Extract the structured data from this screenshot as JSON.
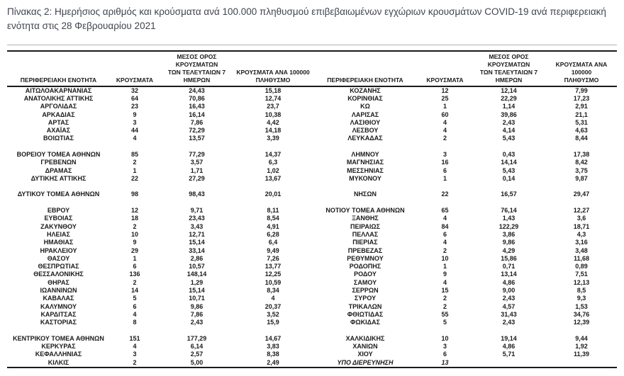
{
  "title": "Πίνακας 2: Ημερήσιος αριθμός και κρούσματα ανά 100.000 πληθυσμού επιβεβαιωμένων εγχώριων κρουσμάτων COVID-19 ανά περιφερειακή ενότητα στις 28 Φεβρουαρίου 2021",
  "colors": {
    "title_text": "#3f4450",
    "table_text": "#1a1a1a",
    "rule_thick": "#1a1a1a",
    "rule_thin": "#b3b3b3",
    "background": "#ffffff"
  },
  "table": {
    "headers": {
      "region": "ΠΕΡΙΦΕΡΕΙΑΚΗ ΕΝΟΤΗΤΑ",
      "cases": "ΚΡΟΥΣΜΑΤΑ",
      "avg7": "ΜΕΣΟΣ ΟΡΟΣ ΚΡΟΥΣΜΑΤΩΝ\nΤΩΝ ΤΕΛΕΥΤΑΙΩΝ 7\nΗΜΕΡΩΝ",
      "per100k": "ΚΡΟΥΣΜΑΤΑ ΑΝΑ 100000\nΠΛΗΘΥΣΜΟ"
    },
    "left_rows": [
      {
        "cells": [
          "ΑΙΤΩΛΟΑΚΑΡΝΑΝΙΑΣ",
          "32",
          "24,43",
          "15,18"
        ]
      },
      {
        "cells": [
          "ΑΝΑΤΟΛΙΚΗΣ ΑΤΤΙΚΗΣ",
          "64",
          "70,86",
          "12,74"
        ]
      },
      {
        "cells": [
          "ΑΡΓΟΛΙΔΑΣ",
          "23",
          "16,43",
          "23,7"
        ]
      },
      {
        "cells": [
          "ΑΡΚΑΔΙΑΣ",
          "9",
          "16,14",
          "10,38"
        ]
      },
      {
        "cells": [
          "ΑΡΤΑΣ",
          "3",
          "7,86",
          "4,42"
        ]
      },
      {
        "cells": [
          "ΑΧΑΪΑΣ",
          "44",
          "72,29",
          "14,18"
        ]
      },
      {
        "cells": [
          "ΒΟΙΩΤΙΑΣ",
          "4",
          "13,57",
          "3,39"
        ]
      },
      null,
      {
        "cells": [
          "ΒΟΡΕΙΟΥ ΤΟΜΕΑ ΑΘΗΝΩΝ",
          "85",
          "77,29",
          "14,37"
        ]
      },
      {
        "cells": [
          "ΓΡΕΒΕΝΩΝ",
          "2",
          "3,57",
          "6,3"
        ]
      },
      {
        "cells": [
          "ΔΡΑΜΑΣ",
          "1",
          "1,71",
          "1,02"
        ]
      },
      {
        "cells": [
          "ΔΥΤΙΚΗΣ ΑΤΤΙΚΗΣ",
          "22",
          "27,29",
          "13,67"
        ]
      },
      null,
      {
        "cells": [
          "ΔΥΤΙΚΟΥ ΤΟΜΕΑ ΑΘΗΝΩΝ",
          "98",
          "98,43",
          "20,01"
        ]
      },
      null,
      {
        "cells": [
          "ΕΒΡΟΥ",
          "12",
          "9,71",
          "8,11"
        ]
      },
      {
        "cells": [
          "ΕΥΒΟΙΑΣ",
          "18",
          "23,43",
          "8,54"
        ]
      },
      {
        "cells": [
          "ΖΑΚΥΝΘΟΥ",
          "2",
          "3,43",
          "4,91"
        ]
      },
      {
        "cells": [
          "ΗΛΕΙΑΣ",
          "10",
          "12,71",
          "6,28"
        ]
      },
      {
        "cells": [
          "ΗΜΑΘΙΑΣ",
          "9",
          "15,14",
          "6,4"
        ]
      },
      {
        "cells": [
          "ΗΡΑΚΛΕΙΟΥ",
          "29",
          "33,14",
          "9,49"
        ]
      },
      {
        "cells": [
          "ΘΑΣΟΥ",
          "1",
          "2,86",
          "7,26"
        ]
      },
      {
        "cells": [
          "ΘΕΣΠΡΩΤΙΑΣ",
          "6",
          "10,57",
          "13,77"
        ]
      },
      {
        "cells": [
          "ΘΕΣΣΑΛΟΝΙΚΗΣ",
          "136",
          "148,14",
          "12,25"
        ]
      },
      {
        "cells": [
          "ΘΗΡΑΣ",
          "2",
          "1,29",
          "10,59"
        ]
      },
      {
        "cells": [
          "ΙΩΑΝΝΙΝΩΝ",
          "14",
          "15,14",
          "8,34"
        ]
      },
      {
        "cells": [
          "ΚΑΒΑΛΑΣ",
          "5",
          "10,71",
          "4"
        ]
      },
      {
        "cells": [
          "ΚΑΛΥΜΝΟΥ",
          "6",
          "9,86",
          "20,37"
        ]
      },
      {
        "cells": [
          "ΚΑΡΔΙΤΣΑΣ",
          "4",
          "7,86",
          "3,52"
        ]
      },
      {
        "cells": [
          "ΚΑΣΤΟΡΙΑΣ",
          "8",
          "2,43",
          "15,9"
        ]
      },
      null,
      {
        "cells": [
          "ΚΕΝΤΡΙΚΟΥ ΤΟΜΕΑ ΑΘΗΝΩΝ",
          "151",
          "177,29",
          "14,67"
        ]
      },
      {
        "cells": [
          "ΚΕΡΚΥΡΑΣ",
          "4",
          "6,14",
          "3,83"
        ]
      },
      {
        "cells": [
          "ΚΕΦΑΛΛΗΝΙΑΣ",
          "3",
          "2,57",
          "8,38"
        ]
      },
      {
        "cells": [
          "ΚΙΛΚΙΣ",
          "2",
          "5,00",
          "2,49"
        ]
      }
    ],
    "right_rows": [
      {
        "cells": [
          "ΚΟΖΑΝΗΣ",
          "12",
          "12,14",
          "7,99"
        ]
      },
      {
        "cells": [
          "ΚΟΡΙΝΘΙΑΣ",
          "25",
          "22,29",
          "17,23"
        ]
      },
      {
        "cells": [
          "ΚΩ",
          "1",
          "1,14",
          "2,91"
        ]
      },
      {
        "cells": [
          "ΛΑΡΙΣΑΣ",
          "60",
          "39,86",
          "21,1"
        ]
      },
      {
        "cells": [
          "ΛΑΣΙΘΙΟΥ",
          "4",
          "2,43",
          "5,31"
        ]
      },
      {
        "cells": [
          "ΛΕΣΒΟΥ",
          "4",
          "4,14",
          "4,63"
        ]
      },
      {
        "cells": [
          "ΛΕΥΚΑΔΑΣ",
          "2",
          "5,43",
          "8,44"
        ]
      },
      null,
      {
        "cells": [
          "ΛΗΜΝΟΥ",
          "3",
          "0,43",
          "17,38"
        ]
      },
      {
        "cells": [
          "ΜΑΓΝΗΣΙΑΣ",
          "16",
          "14,14",
          "8,42"
        ]
      },
      {
        "cells": [
          "ΜΕΣΣΗΝΙΑΣ",
          "6",
          "5,43",
          "3,75"
        ]
      },
      {
        "cells": [
          "ΜΥΚΟΝΟΥ",
          "1",
          "0,14",
          "9,87"
        ]
      },
      null,
      {
        "cells": [
          "ΝΗΣΩΝ",
          "22",
          "16,57",
          "29,47"
        ]
      },
      null,
      {
        "cells": [
          "ΝΟΤΙΟΥ ΤΟΜΕΑ ΑΘΗΝΩΝ",
          "65",
          "76,14",
          "12,27"
        ]
      },
      {
        "cells": [
          "ΞΑΝΘΗΣ",
          "4",
          "1,43",
          "3,6"
        ]
      },
      {
        "cells": [
          "ΠΕΙΡΑΙΩΣ",
          "84",
          "122,29",
          "18,71"
        ]
      },
      {
        "cells": [
          "ΠΕΛΛΑΣ",
          "6",
          "3,86",
          "4,3"
        ]
      },
      {
        "cells": [
          "ΠΙΕΡΙΑΣ",
          "4",
          "9,86",
          "3,16"
        ]
      },
      {
        "cells": [
          "ΠΡΕΒΕΖΑΣ",
          "2",
          "4,29",
          "3,48"
        ]
      },
      {
        "cells": [
          "ΡΕΘΥΜΝΟΥ",
          "10",
          "15,86",
          "11,68"
        ]
      },
      {
        "cells": [
          "ΡΟΔΟΠΗΣ",
          "1",
          "0,71",
          "0,89"
        ]
      },
      {
        "cells": [
          "ΡΟΔΟΥ",
          "9",
          "13,14",
          "7,51"
        ]
      },
      {
        "cells": [
          "ΣΑΜΟΥ",
          "4",
          "4,86",
          "12,13"
        ]
      },
      {
        "cells": [
          "ΣΕΡΡΩΝ",
          "15",
          "9,00",
          "8,5"
        ]
      },
      {
        "cells": [
          "ΣΥΡΟΥ",
          "2",
          "2,43",
          "9,3"
        ]
      },
      {
        "cells": [
          "ΤΡΙΚΑΛΩΝ",
          "2",
          "4,57",
          "1,53"
        ]
      },
      {
        "cells": [
          "ΦΘΙΩΤΙΔΑΣ",
          "55",
          "31,43",
          "34,76"
        ]
      },
      {
        "cells": [
          "ΦΩΚΙΔΑΣ",
          "5",
          "2,43",
          "12,39"
        ]
      },
      null,
      {
        "cells": [
          "ΧΑΛΚΙΔΙΚΗΣ",
          "10",
          "19,14",
          "9,44"
        ]
      },
      {
        "cells": [
          "ΧΑΝΙΩΝ",
          "3",
          "4,86",
          "1,92"
        ]
      },
      {
        "cells": [
          "ΧΙΟΥ",
          "6",
          "5,71",
          "11,39"
        ]
      },
      {
        "cells": [
          "ΥΠΟ ΔΙΕΡΕΥΝΗΣΗ",
          "13",
          "",
          ""
        ],
        "italic": true
      }
    ]
  }
}
